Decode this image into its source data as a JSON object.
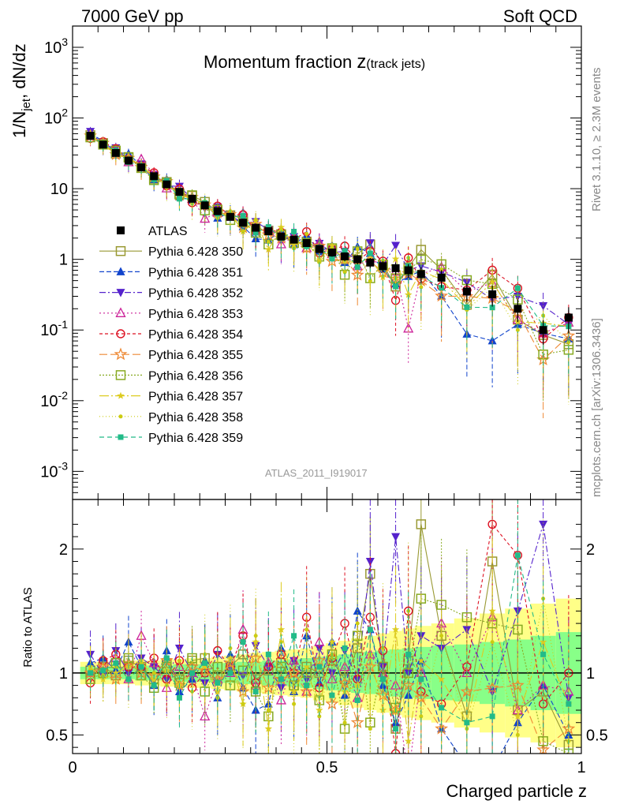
{
  "header": {
    "left": "7000 GeV pp",
    "right": "Soft QCD"
  },
  "side_labels": {
    "top": "Rivet 3.1.10, ≥ 2.3M events",
    "bottom": "mcplots.cern.ch [arXiv:1306.3436]"
  },
  "colors": {
    "ATLAS": "#000000",
    "s350": "#999933",
    "s351": "#1144cc",
    "s352": "#5522cc",
    "s353": "#cc2299",
    "s354": "#dd1122",
    "s355": "#ee8833",
    "s356": "#88aa22",
    "s357": "#ddcc22",
    "s358": "#cccc11",
    "s359": "#22bb88",
    "band_inner": "#88ff88",
    "band_outer": "#ffff88"
  },
  "chart_data": {
    "type": "scatter",
    "title_main": "Momentum fraction ",
    "title_z": "z",
    "title_sub": "(track jets)",
    "xlabel": "Charged particle z",
    "ylabel": "1/N_jet dN/dz",
    "ratio_ylabel": "Ratio to ATLAS",
    "watermark": "ATLAS_2011_I919017",
    "xlim": [
      0,
      1
    ],
    "ylim": [
      0.0004,
      2000
    ],
    "ratio_ylim": [
      0.35,
      2.4
    ],
    "ylog": true,
    "x_ticks": [
      "0",
      "0.5",
      "1"
    ],
    "y_tick_labels": [
      "10^3",
      "10^2",
      "10",
      "1",
      "10^-1",
      "10^-2",
      "10^-3"
    ],
    "ratio_tick_labels": [
      "2",
      "1",
      "0.5"
    ],
    "x": [
      0.035,
      0.06,
      0.085,
      0.11,
      0.135,
      0.16,
      0.185,
      0.21,
      0.235,
      0.26,
      0.285,
      0.31,
      0.335,
      0.36,
      0.385,
      0.41,
      0.435,
      0.46,
      0.485,
      0.51,
      0.535,
      0.56,
      0.585,
      0.61,
      0.635,
      0.66,
      0.685,
      0.725,
      0.775,
      0.825,
      0.875,
      0.925,
      0.975
    ],
    "atlas": [
      56,
      42,
      32,
      25,
      20,
      15,
      11.5,
      9,
      7.2,
      5.8,
      4.8,
      4,
      3.3,
      2.8,
      2.5,
      2.1,
      1.9,
      1.7,
      1.4,
      1.25,
      1.1,
      1,
      0.9,
      0.8,
      0.75,
      0.7,
      0.62,
      0.55,
      0.35,
      0.32,
      0.2,
      0.1,
      0.15
    ],
    "atlas_err_frac": [
      0.06,
      0.06,
      0.06,
      0.06,
      0.07,
      0.07,
      0.07,
      0.08,
      0.08,
      0.08,
      0.09,
      0.09,
      0.1,
      0.1,
      0.1,
      0.11,
      0.11,
      0.12,
      0.12,
      0.13,
      0.14,
      0.15,
      0.16,
      0.18,
      0.2,
      0.22,
      0.25,
      0.28,
      0.3,
      0.33,
      0.35,
      0.38,
      0.4
    ],
    "band_inner_frac": [
      0.05,
      0.05,
      0.05,
      0.05,
      0.06,
      0.06,
      0.06,
      0.07,
      0.07,
      0.07,
      0.08,
      0.08,
      0.09,
      0.09,
      0.1,
      0.1,
      0.11,
      0.12,
      0.13,
      0.14,
      0.15,
      0.16,
      0.17,
      0.18,
      0.19,
      0.2,
      0.21,
      0.22,
      0.23,
      0.25,
      0.27,
      0.3,
      0.33
    ],
    "band_outer_frac": [
      0.09,
      0.09,
      0.09,
      0.09,
      0.1,
      0.1,
      0.11,
      0.11,
      0.12,
      0.12,
      0.13,
      0.14,
      0.15,
      0.16,
      0.17,
      0.18,
      0.19,
      0.2,
      0.22,
      0.24,
      0.26,
      0.28,
      0.3,
      0.32,
      0.34,
      0.36,
      0.38,
      0.4,
      0.44,
      0.48,
      0.52,
      0.56,
      0.6
    ],
    "series": [
      {
        "name": "Pythia 6.428 350",
        "color_key": "s350",
        "marker": "square-open",
        "dash": "",
        "ratios": [
          1.02,
          1.05,
          0.98,
          1.1,
          1.05,
          0.92,
          1.08,
          0.95,
          1.1,
          1.12,
          0.98,
          1.05,
          1.15,
          0.95,
          1.02,
          1.08,
          0.9,
          1.05,
          1.0,
          1.1,
          0.95,
          1.2,
          1.8,
          1.05,
          0.55,
          1.1,
          2.2,
          1.3,
          0.65,
          1.9,
          0.7,
          0.85,
          0.42
        ]
      },
      {
        "name": "Pythia 6.428 351",
        "color_key": "s351",
        "marker": "triangle-up",
        "dash": "6,3",
        "ratios": [
          1.08,
          1.12,
          1.02,
          1.25,
          1.05,
          0.9,
          1.18,
          0.85,
          0.95,
          1.1,
          0.8,
          1.15,
          0.88,
          0.7,
          0.75,
          1.2,
          0.85,
          1.3,
          0.92,
          1.25,
          0.82,
          1.5,
          1.35,
          0.9,
          0.6,
          0.82,
          1.1,
          0.55,
          0.25,
          0.22,
          0.6,
          0.9,
          0.5
        ]
      },
      {
        "name": "Pythia 6.428 352",
        "color_key": "s352",
        "marker": "triangle-down",
        "dash": "8,3,2,3",
        "ratios": [
          1.15,
          0.98,
          1.18,
          1.0,
          1.12,
          1.05,
          0.95,
          1.2,
          1.0,
          0.92,
          1.15,
          1.05,
          0.98,
          1.22,
          1.05,
          0.88,
          1.1,
          0.95,
          1.2,
          1.0,
          1.18,
          0.95,
          1.9,
          1.05,
          2.1,
          1.0,
          1.3,
          1.2,
          1.35,
          0.85,
          1.5,
          2.2,
          0.8
        ]
      },
      {
        "name": "Pythia 6.428 353",
        "color_key": "s353",
        "marker": "triangle-open",
        "dash": "2,3",
        "ratios": [
          1.0,
          1.05,
          1.12,
          0.95,
          1.3,
          1.08,
          0.88,
          1.05,
          1.0,
          0.65,
          0.95,
          1.0,
          1.35,
          0.9,
          1.08,
          0.78,
          1.1,
          0.85,
          1.25,
          0.95,
          1.05,
          0.8,
          1.15,
          1.0,
          0.9,
          0.15,
          1.0,
          1.4,
          1.0,
          1.45,
          0.7,
          0.9,
          0.85
        ]
      },
      {
        "name": "Pythia 6.428 354",
        "color_key": "s354",
        "marker": "circle-open",
        "dash": "4,3",
        "ratios": [
          0.92,
          1.1,
          1.15,
          1.05,
          1.05,
          1.12,
          0.95,
          1.1,
          0.88,
          1.0,
          1.18,
          1.05,
          1.3,
          0.92,
          1.05,
          1.15,
          1.0,
          1.45,
          0.88,
          1.12,
          1.4,
          0.95,
          1.45,
          1.18,
          0.35,
          1.5,
          0.85,
          0.75,
          1.05,
          2.2,
          1.95,
          0.75,
          1.0
        ]
      },
      {
        "name": "Pythia 6.428 355",
        "color_key": "s355",
        "marker": "star",
        "dash": "10,4",
        "ratios": [
          1.0,
          1.05,
          0.95,
          1.08,
          1.0,
          0.98,
          1.1,
          0.9,
          1.05,
          1.02,
          0.95,
          1.08,
          0.85,
          1.12,
          0.88,
          0.95,
          1.0,
          0.85,
          1.1,
          0.75,
          0.92,
          0.6,
          1.05,
          0.82,
          0.7,
          0.9,
          0.8,
          0.55,
          0.85,
          0.88,
          0.9,
          0.38,
          0.55
        ]
      },
      {
        "name": "Pythia 6.428 356",
        "color_key": "s356",
        "marker": "square-open",
        "dash": "2,2",
        "ratios": [
          0.95,
          1.0,
          1.08,
          1.12,
          0.98,
          0.88,
          1.05,
          0.92,
          1.12,
          0.85,
          1.05,
          0.9,
          1.02,
          0.85,
          0.65,
          1.05,
          0.9,
          1.0,
          0.78,
          1.15,
          0.55,
          1.3,
          0.6,
          1.05,
          0.72,
          1.0,
          1.6,
          1.55,
          1.45,
          1.4,
          1.35,
          0.45,
          0.35
        ]
      },
      {
        "name": "Pythia 6.428 357",
        "color_key": "s357",
        "marker": "star-small",
        "dash": "12,3,2,3",
        "ratios": [
          1.05,
          0.95,
          1.0,
          1.05,
          1.1,
          0.95,
          1.02,
          0.9,
          1.0,
          1.05,
          0.85,
          1.12,
          0.75,
          1.25,
          0.55,
          1.35,
          0.85,
          1.05,
          0.7,
          1.25,
          0.85,
          0.9,
          1.15,
          0.7,
          1.35,
          0.45,
          1.1,
          0.95,
          0.6,
          1.5,
          0.65,
          1.25,
          0.75
        ]
      },
      {
        "name": "Pythia 6.428 358",
        "color_key": "s358",
        "marker": "dot",
        "dash": "1,3",
        "ratios": [
          1.02,
          0.98,
          1.05,
          0.95,
          1.08,
          1.0,
          0.9,
          1.1,
          0.85,
          1.15,
          0.8,
          1.2,
          0.75,
          1.3,
          0.7,
          1.25,
          0.75,
          1.35,
          0.65,
          1.15,
          0.6,
          1.4,
          0.55,
          1.2,
          0.7,
          1.5,
          0.65,
          1.3,
          0.55,
          1.25,
          0.5,
          1.6,
          0.45
        ]
      },
      {
        "name": "Pythia 6.428 359",
        "color_key": "s359",
        "marker": "square-small",
        "dash": "6,4",
        "ratios": [
          1.0,
          1.02,
          1.08,
          0.95,
          1.05,
          0.9,
          1.12,
          0.8,
          1.0,
          1.08,
          0.92,
          1.0,
          1.25,
          0.85,
          1.15,
          0.95,
          1.3,
          0.9,
          1.05,
          0.82,
          1.2,
          0.78,
          1.35,
          0.95,
          0.55,
          1.15,
          0.95,
          0.72,
          0.6,
          0.65,
          1.95,
          1.15,
          0.75
        ]
      }
    ]
  }
}
